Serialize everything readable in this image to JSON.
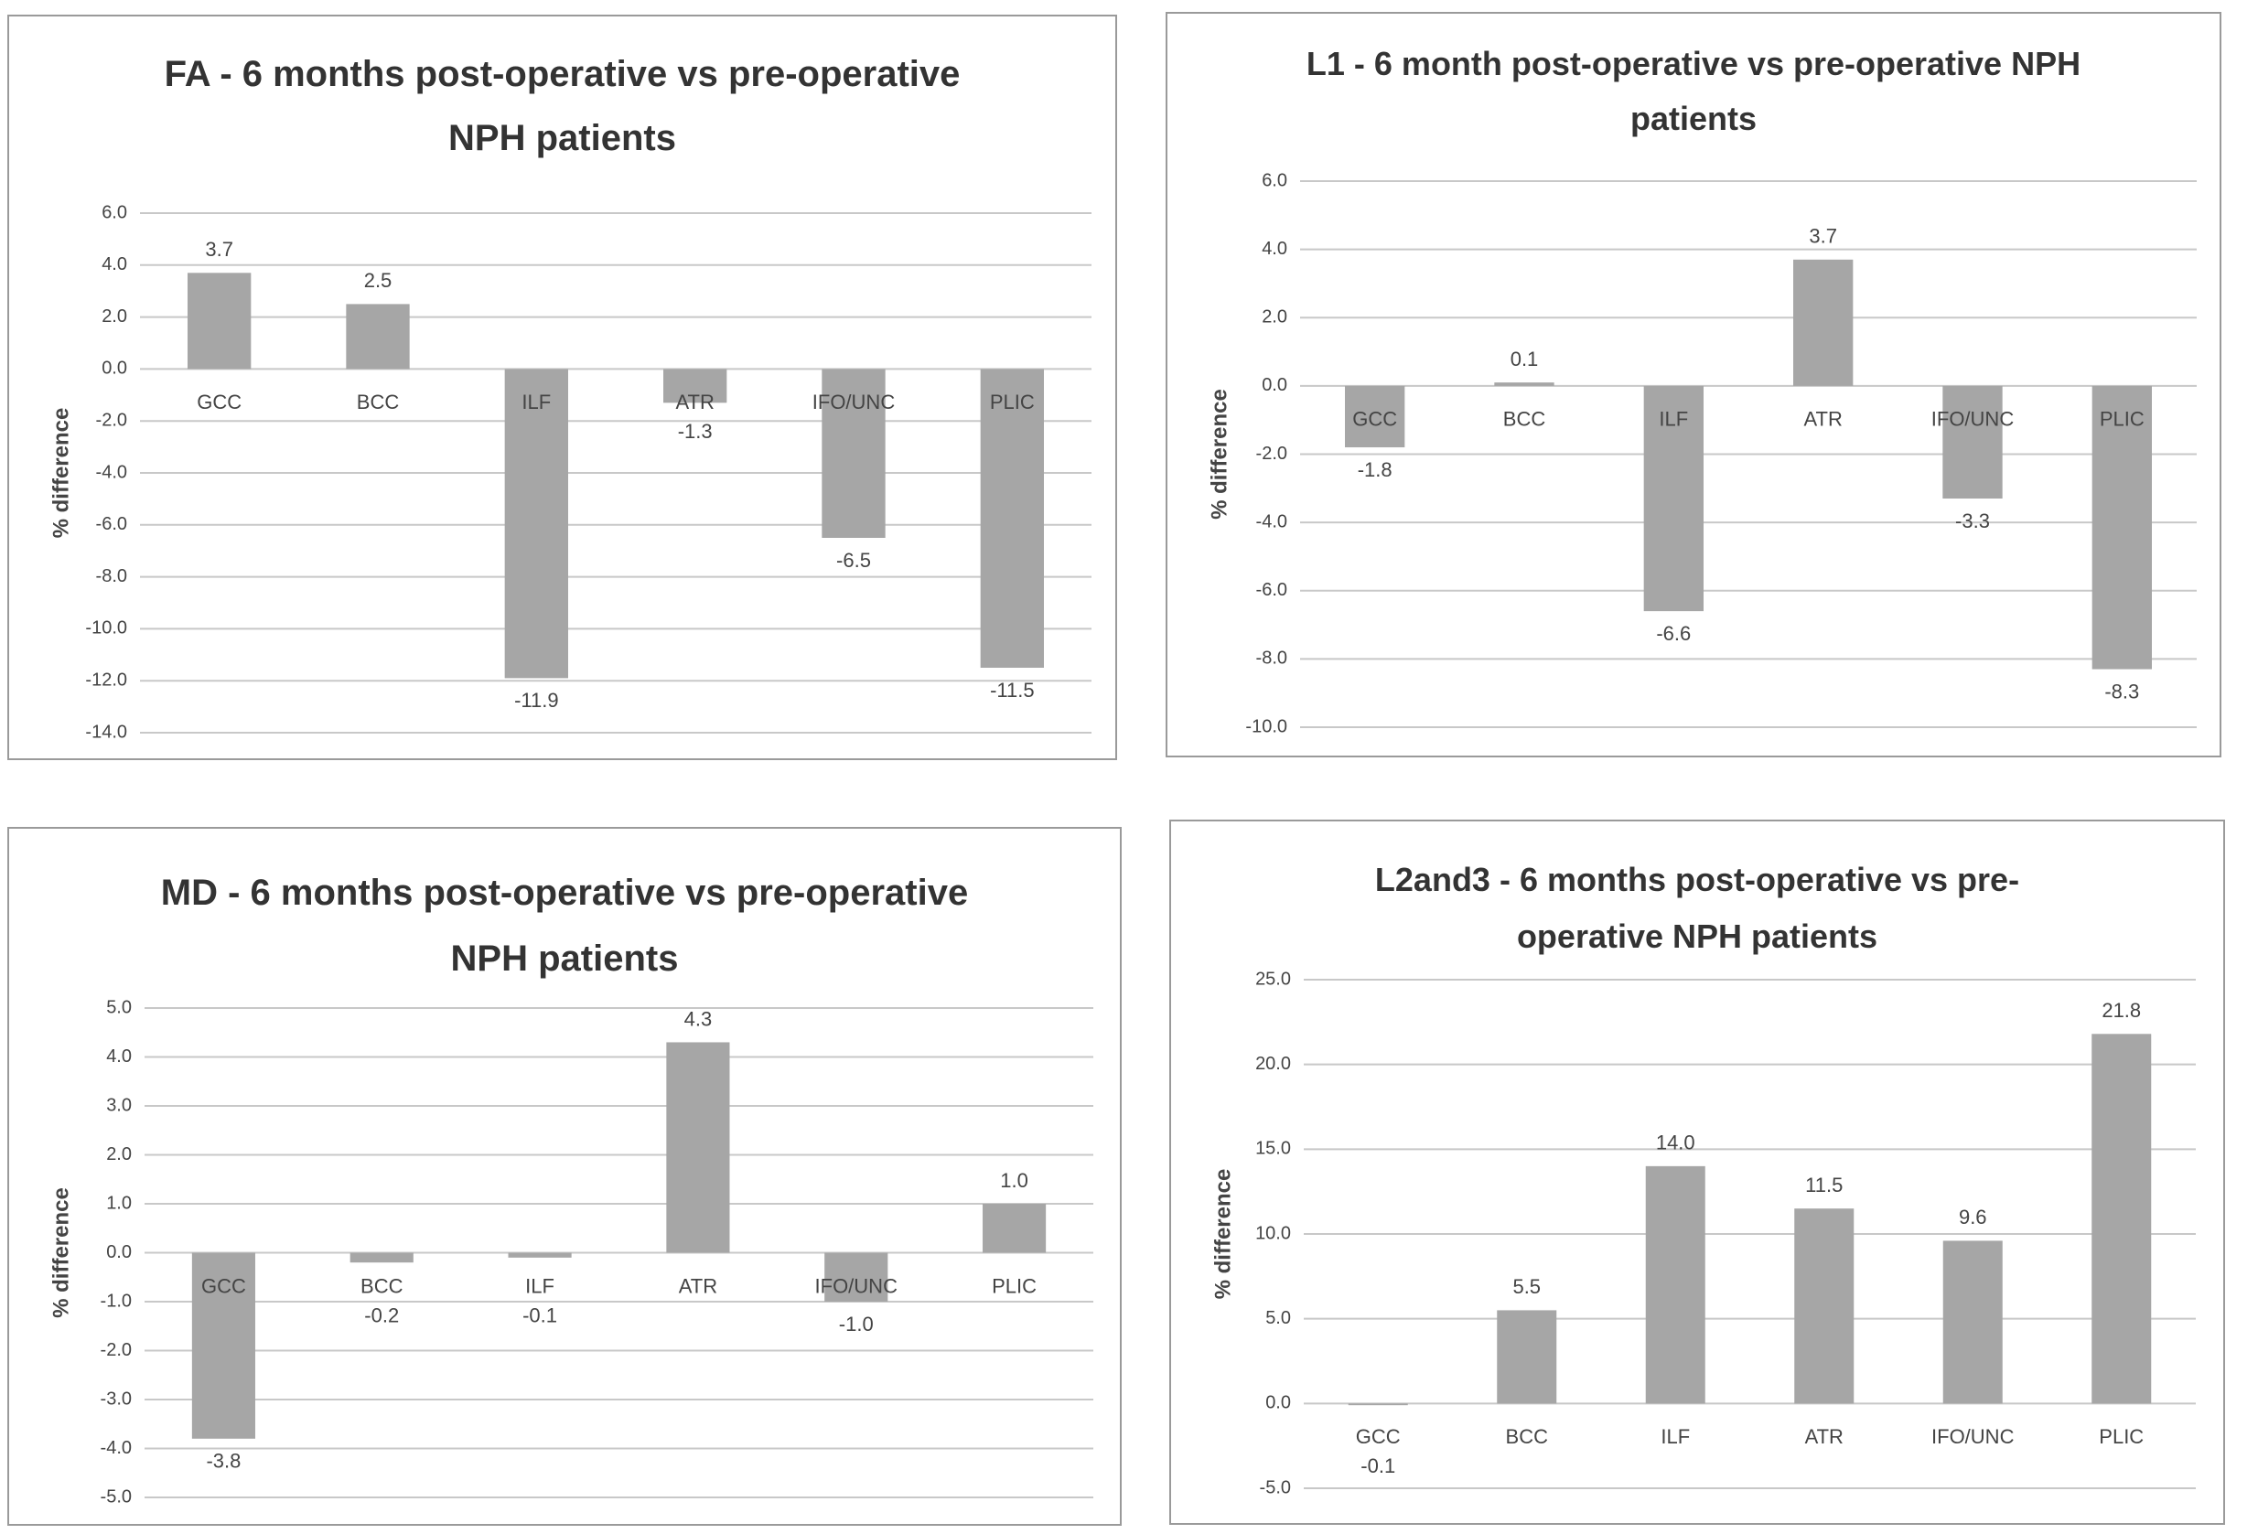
{
  "chart_data": [
    {
      "type": "bar",
      "title": "FA - 6 months post-operative vs pre-operative NPH patients",
      "y_label": "% difference",
      "categories": [
        "GCC",
        "BCC",
        "ILF",
        "ATR",
        "IFO/UNC",
        "PLIC"
      ],
      "values": [
        3.7,
        2.5,
        -11.9,
        -1.3,
        -6.5,
        -11.5
      ],
      "value_labels": [
        "3.7",
        "2.5",
        "-11.9",
        "-1.3",
        "-6.5",
        "-11.5"
      ],
      "color": "#a6a6a6",
      "grid": true,
      "ylim": [
        -14,
        6
      ],
      "yticks": [
        {
          "value": -14,
          "label": "-14.0"
        },
        {
          "value": -12,
          "label": "-12.0"
        },
        {
          "value": -10,
          "label": "-10.0"
        },
        {
          "value": -8,
          "label": "-8.0"
        },
        {
          "value": -6,
          "label": "-6.0"
        },
        {
          "value": -4,
          "label": "-4.0"
        },
        {
          "value": -2,
          "label": "-2.0"
        },
        {
          "value": 0,
          "label": "0.0"
        },
        {
          "value": 2,
          "label": "2.0"
        },
        {
          "value": 4,
          "label": "4.0"
        },
        {
          "value": 6,
          "label": "6.0"
        }
      ]
    },
    {
      "type": "bar",
      "title": "L1 - 6 month post-operative vs pre-operative NPH patients",
      "y_label": "% difference",
      "categories": [
        "GCC",
        "BCC",
        "ILF",
        "ATR",
        "IFO/UNC",
        "PLIC"
      ],
      "values": [
        -1.8,
        0.1,
        -6.6,
        3.7,
        -3.3,
        -8.3
      ],
      "value_labels": [
        "-1.8",
        "0.1",
        "-6.6",
        "3.7",
        "-3.3",
        "-8.3"
      ],
      "color": "#a6a6a6",
      "grid": true,
      "ylim": [
        -10,
        6
      ],
      "yticks": [
        {
          "value": -10,
          "label": "-10.0"
        },
        {
          "value": -8,
          "label": "-8.0"
        },
        {
          "value": -6,
          "label": "-6.0"
        },
        {
          "value": -4,
          "label": "-4.0"
        },
        {
          "value": -2,
          "label": "-2.0"
        },
        {
          "value": 0,
          "label": "0.0"
        },
        {
          "value": 2,
          "label": "2.0"
        },
        {
          "value": 4,
          "label": "4.0"
        },
        {
          "value": 6,
          "label": "6.0"
        }
      ]
    },
    {
      "type": "bar",
      "title": "MD - 6 months post-operative vs pre-operative NPH patients",
      "y_label": "% difference",
      "categories": [
        "GCC",
        "BCC",
        "ILF",
        "ATR",
        "IFO/UNC",
        "PLIC"
      ],
      "values": [
        -3.8,
        -0.2,
        -0.1,
        4.3,
        -1.0,
        1.0
      ],
      "value_labels": [
        "-3.8",
        "-0.2",
        "-0.1",
        "4.3",
        "-1.0",
        "1.0"
      ],
      "color": "#a6a6a6",
      "grid": true,
      "ylim": [
        -5,
        5
      ],
      "yticks": [
        {
          "value": -5,
          "label": "-5.0"
        },
        {
          "value": -4,
          "label": "-4.0"
        },
        {
          "value": -3,
          "label": "-3.0"
        },
        {
          "value": -2,
          "label": "-2.0"
        },
        {
          "value": -1,
          "label": "-1.0"
        },
        {
          "value": 0,
          "label": "0.0"
        },
        {
          "value": 1,
          "label": "1.0"
        },
        {
          "value": 2,
          "label": "2.0"
        },
        {
          "value": 3,
          "label": "3.0"
        },
        {
          "value": 4,
          "label": "4.0"
        },
        {
          "value": 5,
          "label": "5.0"
        }
      ]
    },
    {
      "type": "bar",
      "title": "L2and3 - 6 months post-operative vs pre-operative NPH patients",
      "y_label": "% difference",
      "categories": [
        "GCC",
        "BCC",
        "ILF",
        "ATR",
        "IFO/UNC",
        "PLIC"
      ],
      "values": [
        -0.1,
        5.5,
        14.0,
        11.5,
        9.6,
        21.8
      ],
      "value_labels": [
        "-0.1",
        "5.5",
        "14.0",
        "11.5",
        "9.6",
        "21.8"
      ],
      "color": "#a6a6a6",
      "grid": true,
      "ylim": [
        -5,
        25
      ],
      "yticks": [
        {
          "value": -5,
          "label": "-5.0"
        },
        {
          "value": 0,
          "label": "0.0"
        },
        {
          "value": 5,
          "label": "5.0"
        },
        {
          "value": 10,
          "label": "10.0"
        },
        {
          "value": 15,
          "label": "15.0"
        },
        {
          "value": 20,
          "label": "20.0"
        },
        {
          "value": 25,
          "label": "25.0"
        }
      ]
    }
  ]
}
